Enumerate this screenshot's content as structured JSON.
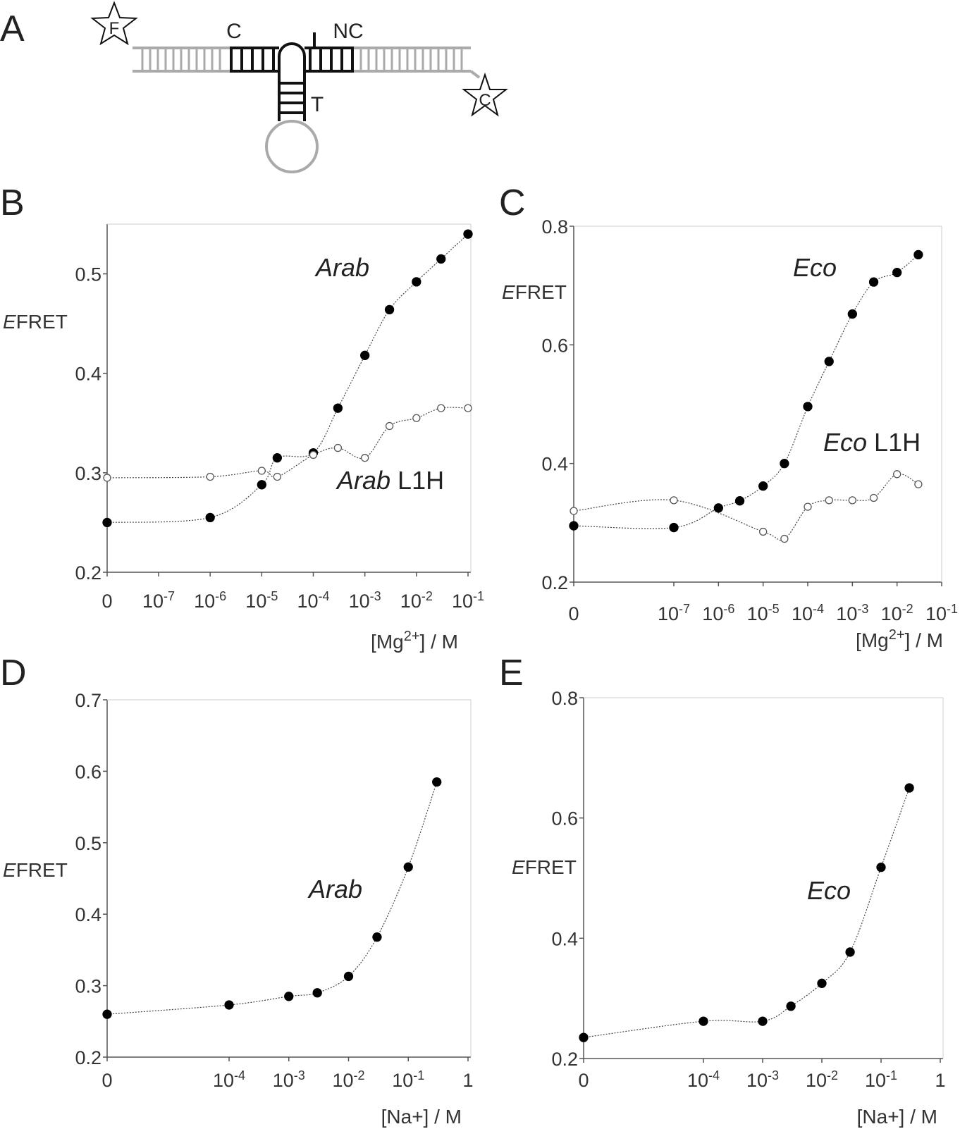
{
  "panels": {
    "A": {
      "letter": "A",
      "labels": {
        "f_star": "F",
        "c_star": "C",
        "c_helix": "C",
        "nc_helix": "NC",
        "t_helix": "T"
      }
    },
    "B": {
      "letter": "B"
    },
    "C": {
      "letter": "C"
    },
    "D": {
      "letter": "D"
    },
    "E": {
      "letter": "E"
    }
  },
  "colors": {
    "axis": "#555555",
    "strand_dark": "#111111",
    "strand_light": "#aaaaaa",
    "curve": "#444444",
    "marker": "#000000"
  },
  "chart_data": [
    {
      "panel": "B",
      "type": "scatter",
      "ylabel": {
        "italic": "E",
        "rest": "FRET"
      },
      "xlabel": {
        "pre": "[Mg",
        "sup": "2+",
        "post": "] / M"
      },
      "xscale": "log10 with zero",
      "ylim": [
        0.2,
        0.55
      ],
      "x_ticks": [
        "0",
        "10-7",
        "10-6",
        "10-5",
        "10-4",
        "10-3",
        "10-2",
        "10-1"
      ],
      "y_ticks": [
        "0.2",
        "0.3",
        "0.4",
        "0.5"
      ],
      "series": [
        {
          "name": "Arab",
          "name_italic": "Arab",
          "name_rest": "",
          "marker": "filled",
          "points": [
            [
              0,
              0.25
            ],
            [
              1e-06,
              0.255
            ],
            [
              1e-05,
              0.288
            ],
            [
              2e-05,
              0.315
            ],
            [
              0.0001,
              0.32
            ],
            [
              0.0003,
              0.365
            ],
            [
              0.001,
              0.418
            ],
            [
              0.003,
              0.464
            ],
            [
              0.01,
              0.492
            ],
            [
              0.03,
              0.515
            ],
            [
              0.1,
              0.54
            ]
          ]
        },
        {
          "name": "Arab L1H",
          "name_italic": "Arab",
          "name_rest": " L1H",
          "marker": "open",
          "points": [
            [
              0,
              0.295
            ],
            [
              1e-06,
              0.296
            ],
            [
              1e-05,
              0.302
            ],
            [
              2e-05,
              0.296
            ],
            [
              0.0001,
              0.318
            ],
            [
              0.0003,
              0.325
            ],
            [
              0.001,
              0.315
            ],
            [
              0.003,
              0.347
            ],
            [
              0.01,
              0.355
            ],
            [
              0.03,
              0.365
            ],
            [
              0.1,
              0.365
            ]
          ]
        }
      ]
    },
    {
      "panel": "C",
      "type": "scatter",
      "ylabel": {
        "italic": "E",
        "rest": "FRET"
      },
      "xlabel": {
        "pre": "[Mg",
        "sup": "2+",
        "post": "] / M"
      },
      "xscale": "log10 with zero",
      "ylim": [
        0.2,
        0.8
      ],
      "x_ticks": [
        "0",
        "10-7",
        "10-6",
        "10-5",
        "10-4",
        "10-3",
        "10-2",
        "10-1"
      ],
      "y_ticks": [
        "0.2",
        "0.4",
        "0.6",
        "0.8"
      ],
      "series": [
        {
          "name": "Eco",
          "name_italic": "Eco",
          "name_rest": "",
          "marker": "filled",
          "points": [
            [
              0,
              0.295
            ],
            [
              1e-07,
              0.292
            ],
            [
              1e-06,
              0.325
            ],
            [
              3e-06,
              0.337
            ],
            [
              1e-05,
              0.362
            ],
            [
              3e-05,
              0.4
            ],
            [
              0.0001,
              0.496
            ],
            [
              0.0003,
              0.572
            ],
            [
              0.001,
              0.652
            ],
            [
              0.003,
              0.706
            ],
            [
              0.01,
              0.722
            ],
            [
              0.03,
              0.752
            ]
          ]
        },
        {
          "name": "Eco L1H",
          "name_italic": "Eco",
          "name_rest": " L1H",
          "marker": "open",
          "points": [
            [
              0,
              0.32
            ],
            [
              1e-07,
              0.338
            ],
            [
              1e-05,
              0.285
            ],
            [
              3e-05,
              0.273
            ],
            [
              0.0001,
              0.327
            ],
            [
              0.0003,
              0.338
            ],
            [
              0.001,
              0.338
            ],
            [
              0.003,
              0.342
            ],
            [
              0.01,
              0.382
            ],
            [
              0.03,
              0.365
            ]
          ]
        }
      ]
    },
    {
      "panel": "D",
      "type": "scatter",
      "ylabel": {
        "italic": "E",
        "rest": "FRET"
      },
      "xlabel": {
        "pre": "[Na+] / M",
        "sup": "",
        "post": ""
      },
      "xscale": "log10 with zero",
      "ylim": [
        0.2,
        0.7
      ],
      "x_ticks": [
        "0",
        "10-4",
        "10-3",
        "10-2",
        "10-1",
        "1"
      ],
      "y_ticks": [
        "0.2",
        "0.3",
        "0.4",
        "0.5",
        "0.6",
        "0.7"
      ],
      "series": [
        {
          "name": "Arab",
          "name_italic": "Arab",
          "name_rest": "",
          "marker": "filled",
          "points": [
            [
              0,
              0.26
            ],
            [
              0.0001,
              0.273
            ],
            [
              0.001,
              0.285
            ],
            [
              0.003,
              0.29
            ],
            [
              0.01,
              0.313
            ],
            [
              0.03,
              0.368
            ],
            [
              0.1,
              0.466
            ],
            [
              0.3,
              0.585
            ]
          ]
        }
      ]
    },
    {
      "panel": "E",
      "type": "scatter",
      "ylabel": {
        "italic": "E",
        "rest": "FRET"
      },
      "xlabel": {
        "pre": "[Na+] / M",
        "sup": "",
        "post": ""
      },
      "xscale": "log10 with zero",
      "ylim": [
        0.2,
        0.8
      ],
      "x_ticks": [
        "0",
        "10-4",
        "10-3",
        "10-2",
        "10-1",
        "1"
      ],
      "y_ticks": [
        "0.2",
        "0.4",
        "0.6",
        "0.8"
      ],
      "series": [
        {
          "name": "Eco",
          "name_italic": "Eco",
          "name_rest": "",
          "marker": "filled",
          "points": [
            [
              0,
              0.235
            ],
            [
              0.0001,
              0.262
            ],
            [
              0.001,
              0.262
            ],
            [
              0.003,
              0.287
            ],
            [
              0.01,
              0.325
            ],
            [
              0.03,
              0.377
            ],
            [
              0.1,
              0.518
            ],
            [
              0.3,
              0.65
            ]
          ]
        }
      ]
    }
  ]
}
